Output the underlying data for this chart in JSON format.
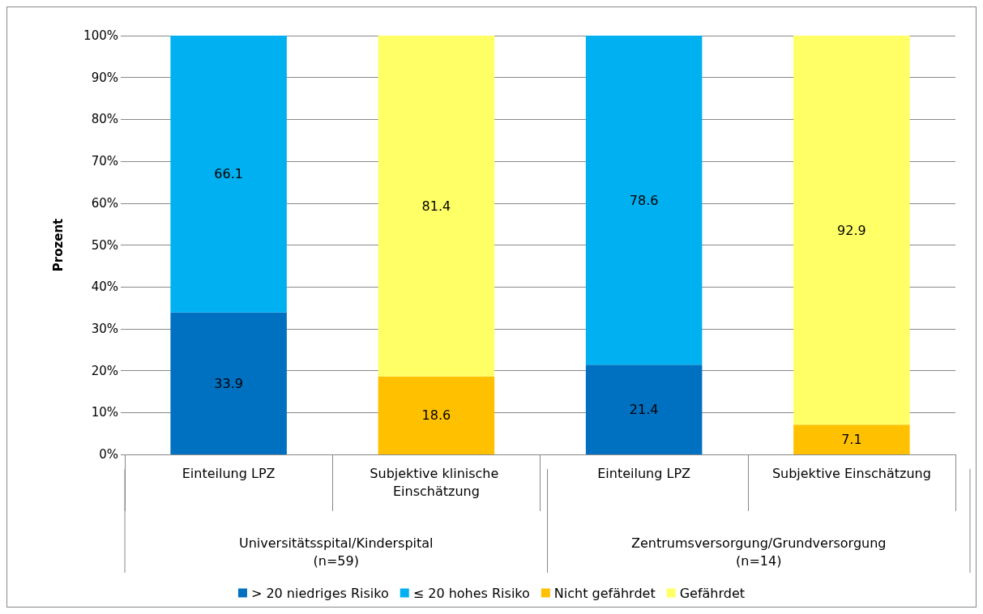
{
  "chart_data": {
    "type": "bar",
    "stacked": true,
    "ylabel": "Prozent",
    "categories": [
      "Einteilung LPZ",
      "Subjektive klinische Einschätzung",
      "Einteilung LPZ",
      "Subjektive Einschätzung"
    ],
    "series": [
      {
        "name": "> 20 niedriges Risiko",
        "color": "#0070c0",
        "values": [
          33.9,
          null,
          21.4,
          null
        ]
      },
      {
        "name": "≤ 20 hohes Risiko",
        "color": "#00b0f0",
        "values": [
          66.1,
          null,
          78.6,
          null
        ]
      },
      {
        "name": "Nicht gefährdet",
        "color": "#ffc000",
        "values": [
          null,
          18.6,
          null,
          7.1
        ]
      },
      {
        "name": "Gefährdet",
        "color": "#ffff66",
        "values": [
          null,
          81.4,
          null,
          92.9
        ]
      }
    ],
    "ylim": [
      0,
      100
    ],
    "yticks": [
      {
        "value": 0,
        "label": "0%"
      },
      {
        "value": 10,
        "label": "10%"
      },
      {
        "value": 20,
        "label": "20%"
      },
      {
        "value": 30,
        "label": "30%"
      },
      {
        "value": 40,
        "label": "40%"
      },
      {
        "value": 50,
        "label": "50%"
      },
      {
        "value": 60,
        "label": "60%"
      },
      {
        "value": 70,
        "label": "70%"
      },
      {
        "value": 80,
        "label": "80%"
      },
      {
        "value": 90,
        "label": "90%"
      },
      {
        "value": 100,
        "label": "100%"
      }
    ],
    "annotations": [
      "Universitätsspital/Kinderspital\n(n=59)",
      "Zentrumsversorgung/Grundversorgung\n(n=14)"
    ],
    "data_labels": true,
    "grid": "y",
    "legend": "bottom"
  }
}
